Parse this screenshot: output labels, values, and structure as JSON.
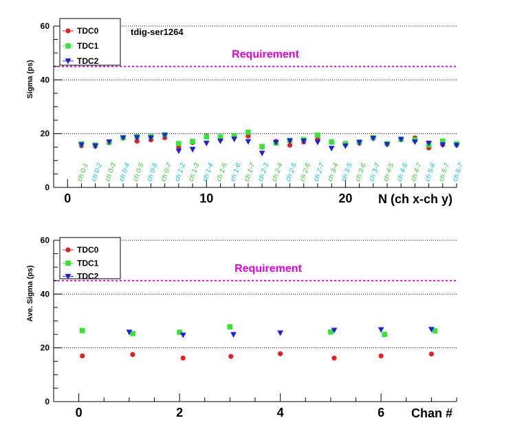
{
  "chart_data": [
    {
      "type": "scatter",
      "annotation": "tdig-ser1264",
      "ylabel": "Sigma (ps)",
      "xlabel": "N (ch x-ch y)",
      "xlim": [
        -1,
        28
      ],
      "ylim": [
        0,
        60
      ],
      "x_ticks": [
        0,
        10,
        20
      ],
      "y_ticks": [
        0,
        20,
        40,
        60
      ],
      "grid": "horizontal dotted",
      "legend_position": "top-left",
      "requirement": {
        "label": "Requirement",
        "value": 45,
        "color": "#e600e6"
      },
      "pair_labels": [
        "ch 0-1",
        "ch 0-2",
        "ch 0-3",
        "ch 0-4",
        "ch 0-5",
        "ch 0-6",
        "ch 0-7",
        "ch 1-2",
        "ch 1-3",
        "ch 1-4",
        "ch 1-5",
        "ch 1-6",
        "ch 1-7",
        "ch 2-3",
        "ch 2-4",
        "ch 2-5",
        "ch 2-6",
        "ch 2-7",
        "ch 3-4",
        "ch 3-5",
        "ch 3-6",
        "ch 3-7",
        "ch 4-5",
        "ch 4-6",
        "ch 4-7",
        "ch 5-6",
        "ch 5-7",
        "ch 6-7"
      ],
      "pair_label_colors": [
        "#33cc33",
        "#00cccc"
      ],
      "series": [
        {
          "name": "TDC0",
          "color": "#e61e1e",
          "marker": "circle",
          "x": [
            1,
            2,
            3,
            4,
            5,
            6,
            7,
            8,
            9,
            10,
            11,
            12,
            13,
            14,
            15,
            16,
            17,
            18,
            19,
            20,
            21,
            22,
            23,
            24,
            25,
            26,
            27,
            28
          ],
          "y": [
            15.5,
            15.3,
            16.6,
            18.5,
            17.2,
            17.7,
            18.5,
            15.1,
            16.7,
            19.2,
            17.8,
            18.9,
            19.1,
            15.0,
            17.1,
            15.7,
            16.9,
            18.1,
            16.8,
            16.2,
            16.4,
            18.6,
            16.1,
            17.9,
            18.4,
            14.7,
            15.9,
            15.8
          ]
        },
        {
          "name": "TDC1",
          "color": "#33e633",
          "marker": "square",
          "x": [
            1,
            2,
            3,
            4,
            5,
            6,
            7,
            8,
            9,
            10,
            11,
            12,
            13,
            14,
            15,
            16,
            17,
            18,
            19,
            20,
            21,
            22,
            23,
            24,
            25,
            26,
            27,
            28
          ],
          "y": [
            16.2,
            15.8,
            16.8,
            18.5,
            18.9,
            18.9,
            19.6,
            16.3,
            17.1,
            18.8,
            18.8,
            19.2,
            20.5,
            15.2,
            16.5,
            17.5,
            17.8,
            19.4,
            16.9,
            16.3,
            16.9,
            18.5,
            16.3,
            17.9,
            17.7,
            15.8,
            17.2,
            16.2
          ]
        },
        {
          "name": "TDC2",
          "color": "#1e1ee6",
          "marker": "triangle-down",
          "x": [
            1,
            2,
            3,
            4,
            5,
            6,
            7,
            8,
            9,
            10,
            11,
            12,
            13,
            14,
            15,
            16,
            17,
            18,
            19,
            20,
            21,
            22,
            23,
            24,
            25,
            26,
            27,
            28
          ],
          "y": [
            15.8,
            15.4,
            16.9,
            18.4,
            18.5,
            18.4,
            19.3,
            13.5,
            14.1,
            16.4,
            17.2,
            17.9,
            17.0,
            12.7,
            16.7,
            17.3,
            17.2,
            16.8,
            14.5,
            15.4,
            16.7,
            18.2,
            15.9,
            17.8,
            16.9,
            16.4,
            15.8,
            15.6
          ]
        }
      ]
    },
    {
      "type": "scatter",
      "ylabel": "Ave. Sigma (ps)",
      "xlabel": "Chan #",
      "xlim": [
        -0.5,
        7.5
      ],
      "ylim": [
        0,
        60
      ],
      "x_ticks": [
        0,
        2,
        4,
        6
      ],
      "y_ticks": [
        0,
        20,
        40,
        60
      ],
      "grid": "horizontal dotted",
      "legend_position": "top-left",
      "requirement": {
        "label": "Requirement",
        "value": 45,
        "color": "#e600e6"
      },
      "series": [
        {
          "name": "TDC0",
          "color": "#e61e1e",
          "marker": "circle",
          "x": [
            0.07,
            1.07,
            2.07,
            3.02,
            4.0,
            5.07,
            6.0,
            7.0
          ],
          "y": [
            17.0,
            17.5,
            16.2,
            16.8,
            17.8,
            16.2,
            17.0,
            17.7
          ]
        },
        {
          "name": "TDC1",
          "color": "#33e633",
          "marker": "square",
          "x": [
            0.07,
            1.07,
            2.0,
            3.0,
            4.0,
            5.0,
            6.07,
            7.07
          ],
          "y": [
            26.4,
            25.3,
            25.8,
            27.8,
            null,
            25.9,
            25.0,
            26.3
          ]
        },
        {
          "name": "TDC2",
          "color": "#1e1ee6",
          "marker": "triangle-down",
          "x": [
            0.07,
            1.0,
            2.07,
            3.07,
            4.0,
            5.07,
            6.0,
            7.0
          ],
          "y": [
            null,
            25.8,
            24.7,
            24.9,
            25.5,
            26.5,
            26.7,
            26.8
          ]
        }
      ]
    }
  ]
}
